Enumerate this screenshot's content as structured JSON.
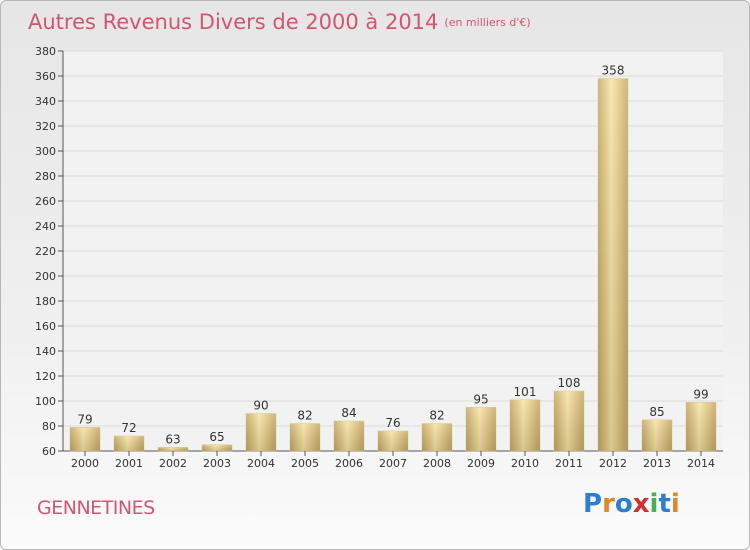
{
  "header": {
    "title": "Autres Revenus Divers de 2000 à 2014",
    "unit": "(en milliers d'€)"
  },
  "footer": {
    "commune": "GENNETINES",
    "brand": "Proxiti"
  },
  "colors": {
    "title": "#d2566e",
    "bar_light": "#f8e4a4",
    "bar_dark": "#c6a862",
    "brand": [
      "#2c7fd0",
      "#e0872a",
      "#2c7fd0",
      "#cf3131",
      "#4bae4f",
      "#2c7fd0",
      "#e0872a"
    ]
  },
  "chart_data": {
    "type": "bar",
    "title": "Autres Revenus Divers de 2000 à 2014",
    "subtitle": "(en milliers d'€)",
    "categories": [
      "2000",
      "2001",
      "2002",
      "2003",
      "2004",
      "2005",
      "2006",
      "2007",
      "2008",
      "2009",
      "2010",
      "2011",
      "2012",
      "2013",
      "2014"
    ],
    "values": [
      79,
      72,
      63,
      65,
      90,
      82,
      84,
      76,
      82,
      95,
      101,
      108,
      358,
      85,
      99
    ],
    "ylim": [
      60,
      380
    ],
    "yticks": [
      60,
      80,
      100,
      120,
      140,
      160,
      180,
      200,
      220,
      240,
      260,
      280,
      300,
      320,
      340,
      360,
      380
    ],
    "grid": true,
    "data_labels": true
  }
}
